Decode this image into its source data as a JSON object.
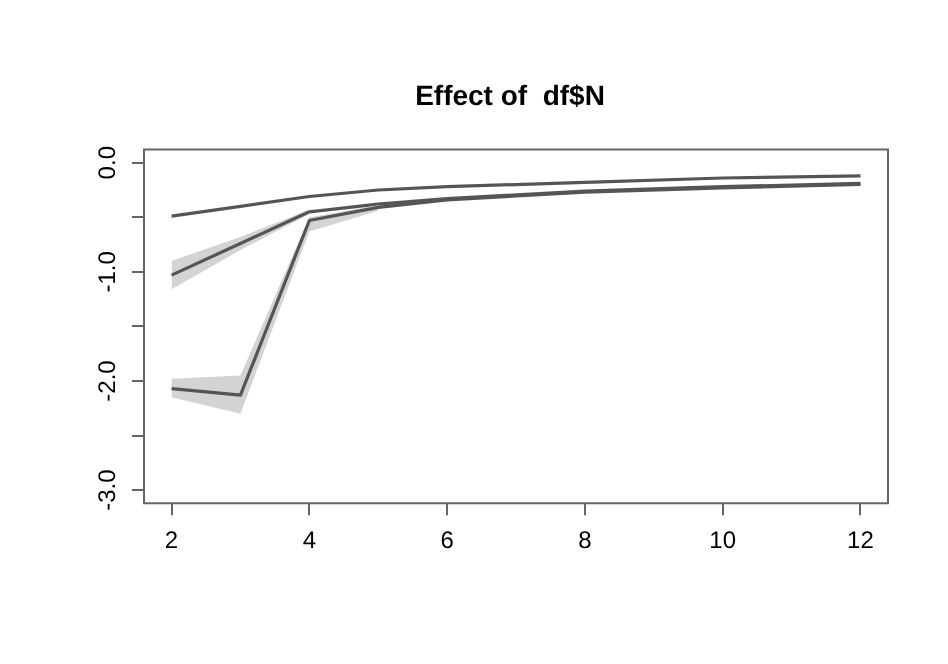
{
  "chart_data": {
    "type": "line",
    "title": "Effect of  df$N",
    "x": [
      2,
      3,
      4,
      5,
      6,
      8,
      10,
      12
    ],
    "series": [
      {
        "color": "#555555",
        "values": [
          -0.49,
          -0.4,
          -0.31,
          -0.25,
          -0.22,
          -0.18,
          -0.14,
          -0.12
        ]
      },
      {
        "color": "#555555",
        "values": [
          -1.03,
          -0.74,
          -0.45,
          -0.38,
          -0.33,
          -0.26,
          -0.22,
          -0.19
        ],
        "lower": [
          -1.16,
          -0.8,
          -0.47,
          null,
          null,
          null,
          null,
          null
        ],
        "upper": [
          -0.9,
          -0.68,
          -0.43,
          null,
          null,
          null,
          null,
          null
        ]
      },
      {
        "color": "#555555",
        "values": [
          -2.07,
          -2.13,
          -0.53,
          -0.41,
          -0.34,
          -0.27,
          -0.23,
          -0.2
        ],
        "lower": [
          -2.15,
          -2.3,
          -0.63,
          -0.44,
          null,
          null,
          null,
          null
        ],
        "upper": [
          -1.98,
          -1.95,
          -0.5,
          -0.39,
          null,
          null,
          null,
          null
        ]
      }
    ],
    "xlim": [
      1.6,
      12.4
    ],
    "ylim": [
      -3.12,
      0.12
    ],
    "xticks": [
      2,
      4,
      6,
      8,
      10,
      12
    ],
    "yticks": [
      {
        "value": 0,
        "label": "0.0"
      },
      {
        "value": -0.5,
        "label": null
      },
      {
        "value": -1,
        "label": "-1.0"
      },
      {
        "value": -1.5,
        "label": null
      },
      {
        "value": -2,
        "label": "-2.0"
      },
      {
        "value": -2.5,
        "label": null
      },
      {
        "value": -3,
        "label": "-3.0"
      }
    ],
    "grid": false,
    "legend": false,
    "marker": "none",
    "line_style": "solid"
  }
}
